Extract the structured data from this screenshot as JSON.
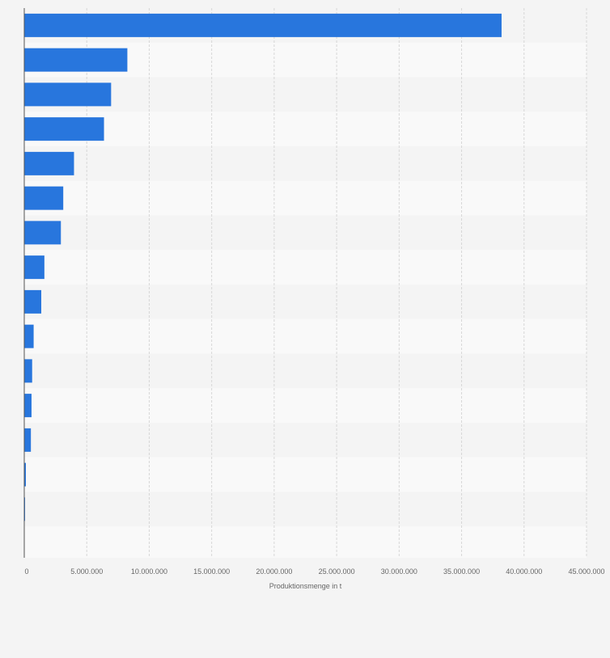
{
  "chart_data": {
    "type": "bar",
    "orientation": "horizontal",
    "categories": [
      "",
      "",
      "",
      "",
      "",
      "",
      "",
      "",
      "",
      "",
      "",
      "",
      "",
      "",
      ""
    ],
    "values": [
      38200000,
      8250000,
      6950000,
      6380000,
      3980000,
      3120000,
      2930000,
      1610000,
      1360000,
      750000,
      630000,
      580000,
      530000,
      130000,
      60000
    ],
    "xlabel": "Produktionsmenge in t",
    "ylabel": "",
    "xlim": [
      0,
      45000000
    ],
    "x_ticks": [
      0,
      5000000,
      10000000,
      15000000,
      20000000,
      25000000,
      30000000,
      35000000,
      40000000,
      45000000
    ],
    "x_tick_labels": [
      "0",
      "5.000.000",
      "10.000.000",
      "15.000.000",
      "20.000.000",
      "25.000.000",
      "30.000.000",
      "35.000.000",
      "40.000.000",
      "45.000.000"
    ],
    "grid": "vertical dashed",
    "legend": "none",
    "colors": {
      "bar": "#2876dd",
      "background": "#f4f4f4",
      "band_light": "#f9f9f9",
      "band_dark": "#f4f4f4",
      "gridline": "#d7d7d7",
      "axis": "#555555",
      "text": "#666666"
    }
  }
}
